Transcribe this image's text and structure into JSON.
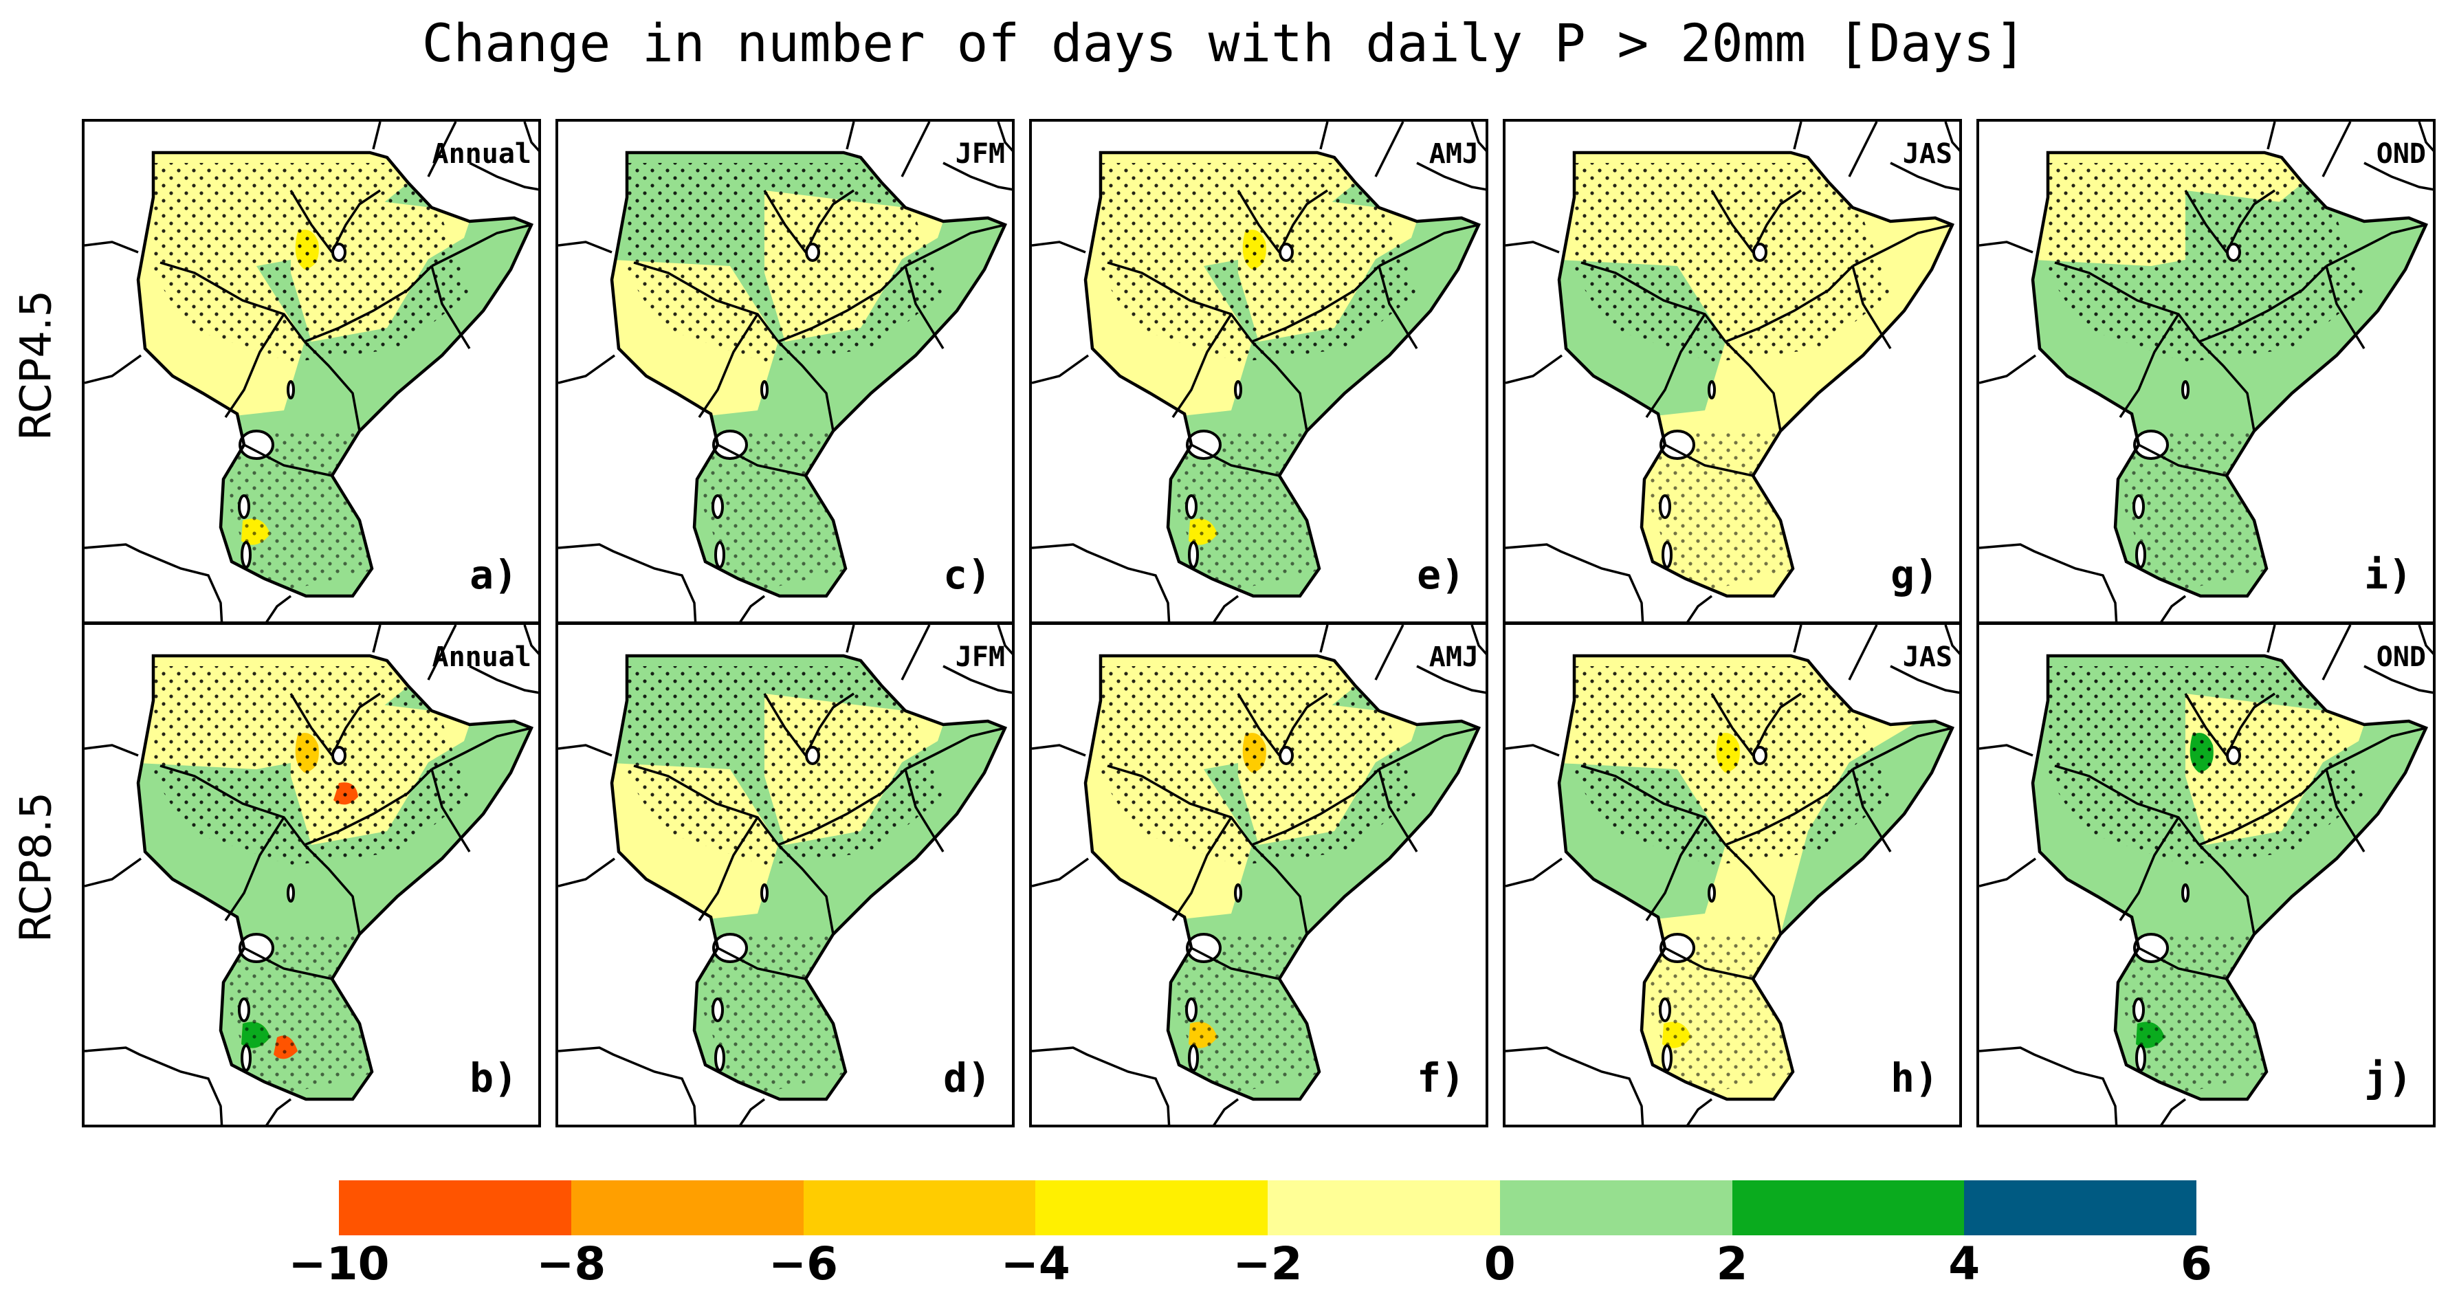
{
  "title": "Change in number of days with daily P > 20mm [Days]",
  "rows": [
    {
      "label": "RCP4.5",
      "panels": [
        {
          "season": "Annual",
          "label": "a)",
          "scheme": "annual45"
        },
        {
          "season": "JFM",
          "label": "c)",
          "scheme": "jfm45"
        },
        {
          "season": "AMJ",
          "label": "e)",
          "scheme": "amj45"
        },
        {
          "season": "JAS",
          "label": "g)",
          "scheme": "jas45"
        },
        {
          "season": "OND",
          "label": "i)",
          "scheme": "ond45"
        }
      ]
    },
    {
      "label": "RCP8.5",
      "panels": [
        {
          "season": "Annual",
          "label": "b)",
          "scheme": "annual85"
        },
        {
          "season": "JFM",
          "label": "d)",
          "scheme": "jfm85"
        },
        {
          "season": "AMJ",
          "label": "f)",
          "scheme": "amj85"
        },
        {
          "season": "JAS",
          "label": "h)",
          "scheme": "jas85"
        },
        {
          "season": "OND",
          "label": "j)",
          "scheme": "ond85"
        }
      ]
    }
  ],
  "colorbar": {
    "ticks": [
      "−10",
      "−8",
      "−6",
      "−4",
      "−2",
      "0",
      "2",
      "4",
      "6"
    ],
    "bins": [
      {
        "from": -10,
        "to": -8,
        "color": "#ff5400"
      },
      {
        "from": -8,
        "to": -6,
        "color": "#ff9f00"
      },
      {
        "from": -6,
        "to": -4,
        "color": "#ffcc00"
      },
      {
        "from": -4,
        "to": -2,
        "color": "#fff000"
      },
      {
        "from": -2,
        "to": 0,
        "color": "#ffff96"
      },
      {
        "from": 0,
        "to": 2,
        "color": "#96df8f"
      },
      {
        "from": 2,
        "to": 4,
        "color": "#0aab1e"
      },
      {
        "from": 4,
        "to": 6,
        "color": "#005a82"
      }
    ]
  },
  "colors": {
    "yellow_light": "#ffff96",
    "green_light": "#96df8f",
    "green_dark": "#0aab1e",
    "yellow": "#fff000",
    "orange": "#ffcc00",
    "red": "#ff5400"
  }
}
